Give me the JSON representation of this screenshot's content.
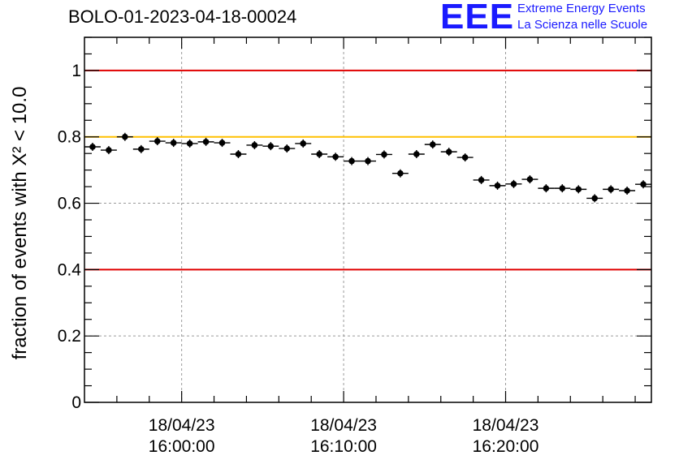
{
  "chart_data": {
    "type": "scatter",
    "title": "BOLO-01-2023-04-18-00024",
    "ylabel": "fraction of events with X² < 10.0",
    "xlabel": "",
    "ylim": [
      0,
      1.1
    ],
    "xlim_minutes_from_1600": [
      -6,
      29
    ],
    "x_tick_labels": [
      {
        "date": "18/04/23",
        "time": "16:00:00",
        "minute": 0
      },
      {
        "date": "18/04/23",
        "time": "16:10:00",
        "minute": 10
      },
      {
        "date": "18/04/23",
        "time": "16:20:00",
        "minute": 20
      }
    ],
    "y_ticks": [
      0,
      0.2,
      0.4,
      0.6,
      0.8,
      1
    ],
    "y_tick_labels": [
      "0",
      "0.2",
      "0.4",
      "0.6",
      "0.8",
      "1"
    ],
    "grid": true,
    "reference_lines": [
      {
        "y": 1.0,
        "color": "#e00000"
      },
      {
        "y": 0.8,
        "color": "#ffc000"
      },
      {
        "y": 0.4,
        "color": "#e00000"
      }
    ],
    "series": [
      {
        "marker_color": "#000000",
        "x_time": [
          "15:54:30",
          "15:55:30",
          "15:56:30",
          "15:57:30",
          "15:58:30",
          "15:59:30",
          "16:00:30",
          "16:01:30",
          "16:02:30",
          "16:03:30",
          "16:04:30",
          "16:05:30",
          "16:06:30",
          "16:07:30",
          "16:08:30",
          "16:09:30",
          "16:10:30",
          "16:11:30",
          "16:12:30",
          "16:13:30",
          "16:14:30",
          "16:15:30",
          "16:16:30",
          "16:17:30",
          "16:18:30",
          "16:19:30",
          "16:20:30",
          "16:21:30",
          "16:22:30",
          "16:23:30",
          "16:24:30",
          "16:25:30",
          "16:26:30",
          "16:27:30",
          "16:28:30"
        ],
        "x_minute": [
          -5.5,
          -4.5,
          -3.5,
          -2.5,
          -1.5,
          -0.5,
          0.5,
          1.5,
          2.5,
          3.5,
          4.5,
          5.5,
          6.5,
          7.5,
          8.5,
          9.5,
          10.5,
          11.5,
          12.5,
          13.5,
          14.5,
          15.5,
          16.5,
          17.5,
          18.5,
          19.5,
          20.5,
          21.5,
          22.5,
          23.5,
          24.5,
          25.5,
          26.5,
          27.5,
          28.5
        ],
        "y": [
          0.77,
          0.76,
          0.8,
          0.763,
          0.787,
          0.782,
          0.78,
          0.785,
          0.782,
          0.748,
          0.775,
          0.772,
          0.765,
          0.78,
          0.748,
          0.74,
          0.727,
          0.727,
          0.747,
          0.69,
          0.748,
          0.777,
          0.755,
          0.738,
          0.67,
          0.653,
          0.658,
          0.672,
          0.645,
          0.645,
          0.642,
          0.615,
          0.642,
          0.638,
          0.657
        ]
      }
    ]
  },
  "logo": {
    "mark": "EEE",
    "line1": "Extreme Energy Events",
    "line2": "La Scienza nelle Scuole"
  }
}
